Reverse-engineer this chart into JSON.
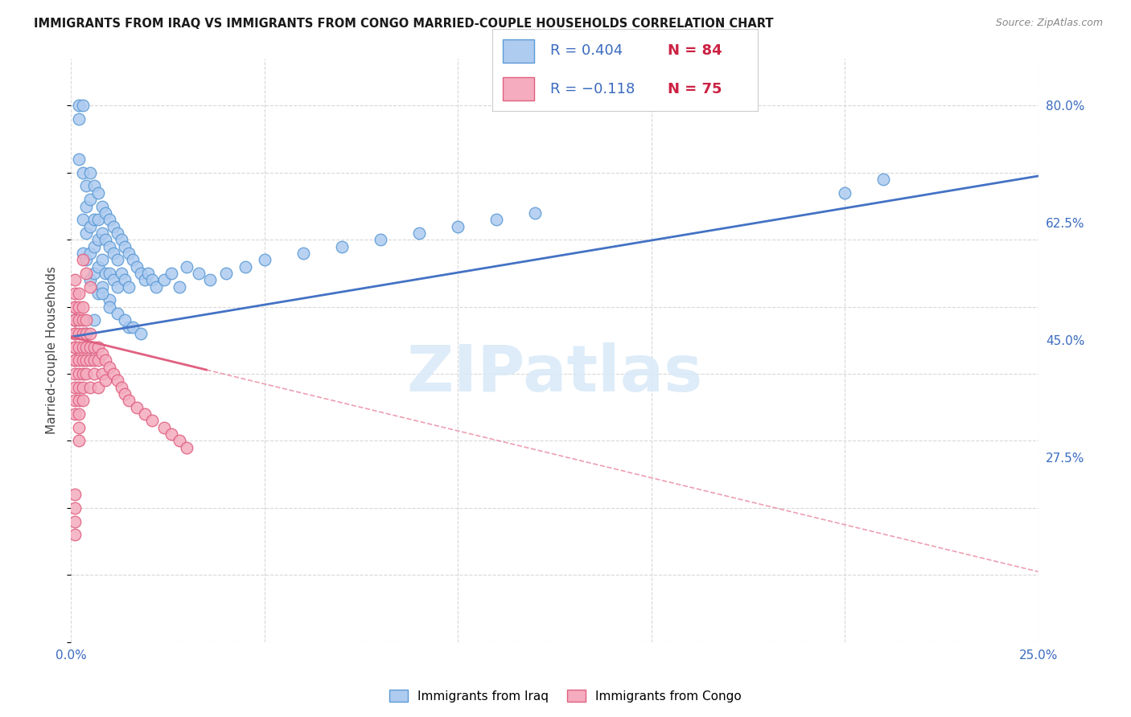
{
  "title": "IMMIGRANTS FROM IRAQ VS IMMIGRANTS FROM CONGO MARRIED-COUPLE HOUSEHOLDS CORRELATION CHART",
  "source": "Source: ZipAtlas.com",
  "ylabel": "Married-couple Households",
  "xlim": [
    0.0,
    0.25
  ],
  "ylim": [
    0.0,
    0.87
  ],
  "x_ticks": [
    0.0,
    0.05,
    0.1,
    0.15,
    0.2,
    0.25
  ],
  "x_tick_labels": [
    "0.0%",
    "",
    "",
    "",
    "",
    "25.0%"
  ],
  "y_ticks_right": [
    0.8,
    0.625,
    0.45,
    0.275
  ],
  "y_tick_labels_right": [
    "80.0%",
    "62.5%",
    "45.0%",
    "27.5%"
  ],
  "R_iraq": 0.404,
  "N_iraq": 84,
  "R_congo": -0.118,
  "N_congo": 75,
  "color_iraq": "#aecbf0",
  "color_iraq_edge": "#5b9bd5",
  "color_congo": "#f4acbe",
  "color_congo_edge": "#e06080",
  "color_iraq_line": "#4472c4",
  "color_congo_line": "#e06080",
  "watermark_text": "ZIPatlas",
  "watermark_color": "#daeaf8",
  "iraq_x": [
    0.001,
    0.002,
    0.002,
    0.002,
    0.003,
    0.003,
    0.003,
    0.003,
    0.004,
    0.004,
    0.004,
    0.004,
    0.005,
    0.005,
    0.005,
    0.005,
    0.005,
    0.006,
    0.006,
    0.006,
    0.006,
    0.007,
    0.007,
    0.007,
    0.007,
    0.007,
    0.008,
    0.008,
    0.008,
    0.008,
    0.009,
    0.009,
    0.009,
    0.01,
    0.01,
    0.01,
    0.01,
    0.011,
    0.011,
    0.011,
    0.012,
    0.012,
    0.012,
    0.013,
    0.013,
    0.014,
    0.014,
    0.015,
    0.015,
    0.016,
    0.017,
    0.018,
    0.019,
    0.02,
    0.021,
    0.022,
    0.024,
    0.026,
    0.028,
    0.03,
    0.033,
    0.036,
    0.04,
    0.045,
    0.05,
    0.06,
    0.07,
    0.08,
    0.09,
    0.1,
    0.11,
    0.12,
    0.015,
    0.2,
    0.21,
    0.004,
    0.005,
    0.006,
    0.008,
    0.01,
    0.012,
    0.014,
    0.016,
    0.018
  ],
  "iraq_y": [
    0.48,
    0.8,
    0.78,
    0.72,
    0.8,
    0.7,
    0.63,
    0.58,
    0.68,
    0.65,
    0.61,
    0.57,
    0.7,
    0.66,
    0.62,
    0.58,
    0.54,
    0.68,
    0.63,
    0.59,
    0.55,
    0.67,
    0.63,
    0.6,
    0.56,
    0.52,
    0.65,
    0.61,
    0.57,
    0.53,
    0.64,
    0.6,
    0.55,
    0.63,
    0.59,
    0.55,
    0.51,
    0.62,
    0.58,
    0.54,
    0.61,
    0.57,
    0.53,
    0.6,
    0.55,
    0.59,
    0.54,
    0.58,
    0.53,
    0.57,
    0.56,
    0.55,
    0.54,
    0.55,
    0.54,
    0.53,
    0.54,
    0.55,
    0.53,
    0.56,
    0.55,
    0.54,
    0.55,
    0.56,
    0.57,
    0.58,
    0.59,
    0.6,
    0.61,
    0.62,
    0.63,
    0.64,
    0.47,
    0.67,
    0.69,
    0.46,
    0.44,
    0.48,
    0.52,
    0.5,
    0.49,
    0.48,
    0.47,
    0.46
  ],
  "congo_x": [
    0.001,
    0.001,
    0.001,
    0.001,
    0.001,
    0.001,
    0.001,
    0.001,
    0.001,
    0.001,
    0.001,
    0.001,
    0.001,
    0.001,
    0.001,
    0.001,
    0.002,
    0.002,
    0.002,
    0.002,
    0.002,
    0.002,
    0.002,
    0.002,
    0.002,
    0.002,
    0.002,
    0.002,
    0.003,
    0.003,
    0.003,
    0.003,
    0.003,
    0.003,
    0.003,
    0.003,
    0.004,
    0.004,
    0.004,
    0.004,
    0.004,
    0.005,
    0.005,
    0.005,
    0.005,
    0.006,
    0.006,
    0.006,
    0.007,
    0.007,
    0.007,
    0.008,
    0.008,
    0.009,
    0.009,
    0.01,
    0.011,
    0.012,
    0.013,
    0.014,
    0.015,
    0.017,
    0.019,
    0.021,
    0.024,
    0.026,
    0.028,
    0.03,
    0.003,
    0.004,
    0.005,
    0.001,
    0.001,
    0.001,
    0.001
  ],
  "congo_y": [
    0.5,
    0.48,
    0.46,
    0.44,
    0.42,
    0.4,
    0.38,
    0.54,
    0.52,
    0.5,
    0.48,
    0.46,
    0.44,
    0.42,
    0.36,
    0.34,
    0.52,
    0.5,
    0.48,
    0.46,
    0.44,
    0.42,
    0.4,
    0.38,
    0.36,
    0.34,
    0.32,
    0.3,
    0.5,
    0.48,
    0.46,
    0.44,
    0.42,
    0.4,
    0.38,
    0.36,
    0.48,
    0.46,
    0.44,
    0.42,
    0.4,
    0.46,
    0.44,
    0.42,
    0.38,
    0.44,
    0.42,
    0.4,
    0.44,
    0.42,
    0.38,
    0.43,
    0.4,
    0.42,
    0.39,
    0.41,
    0.4,
    0.39,
    0.38,
    0.37,
    0.36,
    0.35,
    0.34,
    0.33,
    0.32,
    0.31,
    0.3,
    0.29,
    0.57,
    0.55,
    0.53,
    0.22,
    0.2,
    0.18,
    0.16
  ]
}
